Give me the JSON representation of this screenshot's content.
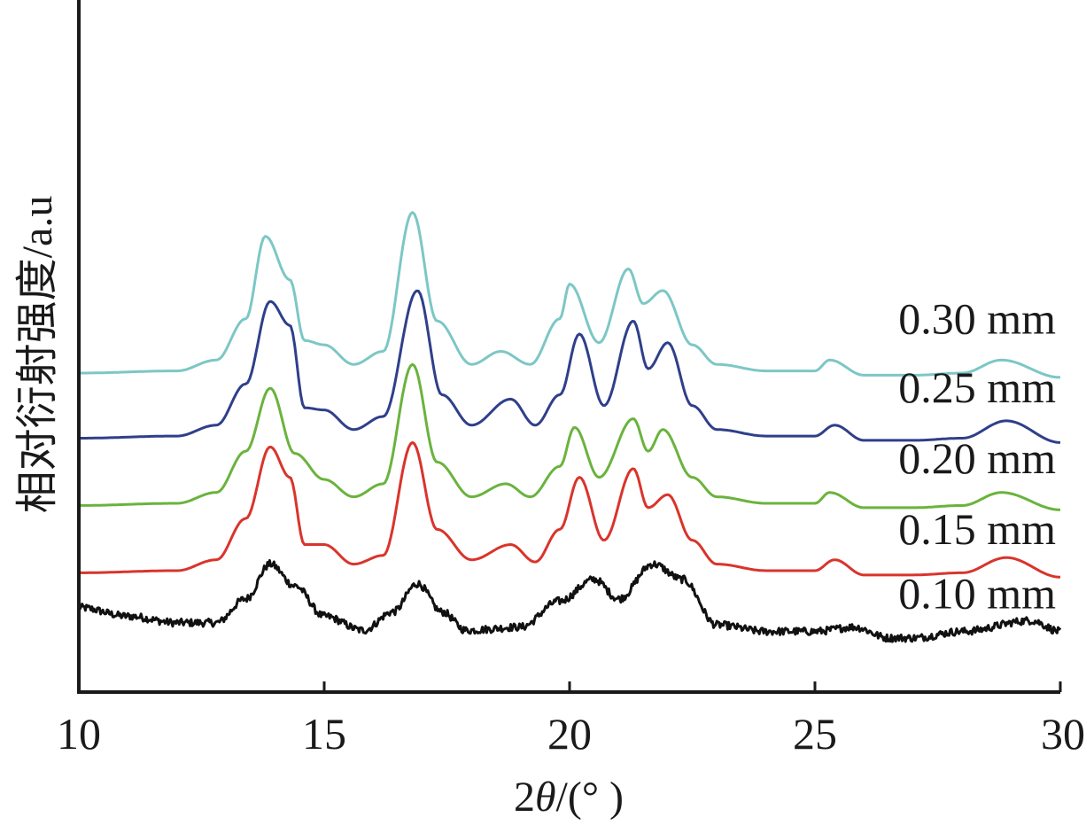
{
  "chart_data": {
    "type": "line",
    "title": "",
    "xlabel_prefix": "2",
    "xlabel_symbol": "θ",
    "xlabel_suffix": "/(° )",
    "ylabel": "相对衍射强度/a.u",
    "xlim": [
      10,
      30
    ],
    "x_ticks": [
      10,
      15,
      20,
      25,
      30
    ],
    "grid": false,
    "series": [
      {
        "name": "0.10 mm",
        "color": "#111111",
        "baseline": 0,
        "noise": true,
        "points": [
          [
            10,
            1.2
          ],
          [
            11,
            0.8
          ],
          [
            12,
            0.5
          ],
          [
            12.8,
            0.5
          ],
          [
            13.4,
            1.6
          ],
          [
            13.9,
            3.2
          ],
          [
            14.4,
            2.2
          ],
          [
            15,
            0.8
          ],
          [
            15.8,
            0.15
          ],
          [
            16.4,
            1.0
          ],
          [
            16.9,
            2.3
          ],
          [
            17.4,
            1.0
          ],
          [
            17.9,
            0.15
          ],
          [
            19,
            0.3
          ],
          [
            19.8,
            1.5
          ],
          [
            20.5,
            2.5
          ],
          [
            21,
            1.6
          ],
          [
            21.7,
            3.2
          ],
          [
            22.3,
            2.5
          ],
          [
            23,
            0.4
          ],
          [
            24,
            0.1
          ],
          [
            25,
            0.1
          ],
          [
            25.8,
            0.3
          ],
          [
            26.5,
            -0.2
          ],
          [
            27,
            -0.2
          ],
          [
            28,
            0.1
          ],
          [
            29.4,
            0.6
          ],
          [
            30,
            0.1
          ]
        ]
      },
      {
        "name": "0.15 mm",
        "color": "#d9342b",
        "baseline": 2.8,
        "noise": false,
        "points": [
          [
            10,
            0
          ],
          [
            12,
            0.1
          ],
          [
            12.8,
            0.6
          ],
          [
            13.4,
            2.5
          ],
          [
            13.9,
            5.8
          ],
          [
            14.3,
            4.4
          ],
          [
            14.6,
            1.3
          ],
          [
            15,
            1.3
          ],
          [
            15.6,
            0.4
          ],
          [
            16.2,
            0.8
          ],
          [
            16.8,
            6.0
          ],
          [
            17.3,
            2.0
          ],
          [
            18,
            0.6
          ],
          [
            18.8,
            1.3
          ],
          [
            19.3,
            0.5
          ],
          [
            19.8,
            2.0
          ],
          [
            20.2,
            4.4
          ],
          [
            20.7,
            1.5
          ],
          [
            21.3,
            4.8
          ],
          [
            21.6,
            3.0
          ],
          [
            22,
            3.6
          ],
          [
            22.5,
            1.5
          ],
          [
            23,
            0.4
          ],
          [
            24,
            0.1
          ],
          [
            25,
            0.1
          ],
          [
            25.4,
            0.6
          ],
          [
            26,
            -0.1
          ],
          [
            27,
            -0.1
          ],
          [
            28,
            0
          ],
          [
            28.9,
            0.7
          ],
          [
            30,
            -0.2
          ]
        ]
      },
      {
        "name": "0.20 mm",
        "color": "#6ab33d",
        "baseline": 5.9,
        "noise": false,
        "points": [
          [
            10,
            0
          ],
          [
            12,
            0.1
          ],
          [
            12.8,
            0.6
          ],
          [
            13.4,
            2.5
          ],
          [
            13.9,
            5.4
          ],
          [
            14.4,
            2.4
          ],
          [
            15,
            1.2
          ],
          [
            15.6,
            0.4
          ],
          [
            16.2,
            1.0
          ],
          [
            16.8,
            6.5
          ],
          [
            17.3,
            2.0
          ],
          [
            18,
            0.4
          ],
          [
            18.7,
            1.0
          ],
          [
            19.2,
            0.4
          ],
          [
            19.8,
            1.8
          ],
          [
            20.1,
            3.6
          ],
          [
            20.6,
            1.3
          ],
          [
            21.3,
            4.0
          ],
          [
            21.6,
            2.5
          ],
          [
            21.9,
            3.5
          ],
          [
            22.5,
            1.3
          ],
          [
            23,
            0.4
          ],
          [
            24,
            0.1
          ],
          [
            25,
            0.1
          ],
          [
            25.3,
            0.6
          ],
          [
            26,
            -0.1
          ],
          [
            27,
            -0.1
          ],
          [
            28,
            0
          ],
          [
            28.8,
            0.6
          ],
          [
            30,
            -0.2
          ]
        ]
      },
      {
        "name": "0.25 mm",
        "color": "#2f3f8a",
        "baseline": 9.0,
        "noise": false,
        "points": [
          [
            10,
            0
          ],
          [
            12,
            0.1
          ],
          [
            12.8,
            0.6
          ],
          [
            13.4,
            2.5
          ],
          [
            13.9,
            6.3
          ],
          [
            14.3,
            5.2
          ],
          [
            14.6,
            1.4
          ],
          [
            15,
            1.3
          ],
          [
            15.6,
            0.4
          ],
          [
            16.2,
            1.0
          ],
          [
            16.9,
            6.8
          ],
          [
            17.4,
            2.0
          ],
          [
            18,
            0.6
          ],
          [
            18.8,
            1.8
          ],
          [
            19.3,
            0.6
          ],
          [
            19.8,
            2.0
          ],
          [
            20.2,
            4.8
          ],
          [
            20.7,
            1.5
          ],
          [
            21.3,
            5.4
          ],
          [
            21.6,
            3.2
          ],
          [
            22,
            4.4
          ],
          [
            22.5,
            1.5
          ],
          [
            23,
            0.4
          ],
          [
            24,
            0.1
          ],
          [
            25,
            0.1
          ],
          [
            25.4,
            0.6
          ],
          [
            26,
            -0.1
          ],
          [
            27,
            -0.1
          ],
          [
            28,
            0
          ],
          [
            28.9,
            0.8
          ],
          [
            30,
            -0.2
          ]
        ]
      },
      {
        "name": "0.30 mm",
        "color": "#7cc7c5",
        "baseline": 12.0,
        "noise": false,
        "points": [
          [
            10,
            0
          ],
          [
            12,
            0.1
          ],
          [
            12.8,
            0.6
          ],
          [
            13.4,
            2.5
          ],
          [
            13.8,
            6.3
          ],
          [
            14.3,
            4.3
          ],
          [
            14.6,
            1.5
          ],
          [
            15,
            1.3
          ],
          [
            15.6,
            0.4
          ],
          [
            16.2,
            1.0
          ],
          [
            16.8,
            7.4
          ],
          [
            17.3,
            2.4
          ],
          [
            18,
            0.4
          ],
          [
            18.6,
            1.0
          ],
          [
            19.2,
            0.4
          ],
          [
            19.8,
            2.5
          ],
          [
            20,
            4.1
          ],
          [
            20.6,
            1.4
          ],
          [
            21.2,
            4.8
          ],
          [
            21.5,
            3.2
          ],
          [
            21.9,
            3.8
          ],
          [
            22.5,
            1.3
          ],
          [
            23,
            0.4
          ],
          [
            24,
            0.1
          ],
          [
            25,
            0.1
          ],
          [
            25.3,
            0.6
          ],
          [
            26,
            -0.1
          ],
          [
            27,
            -0.1
          ],
          [
            28,
            0
          ],
          [
            28.8,
            0.6
          ],
          [
            30,
            -0.2
          ]
        ]
      }
    ]
  }
}
